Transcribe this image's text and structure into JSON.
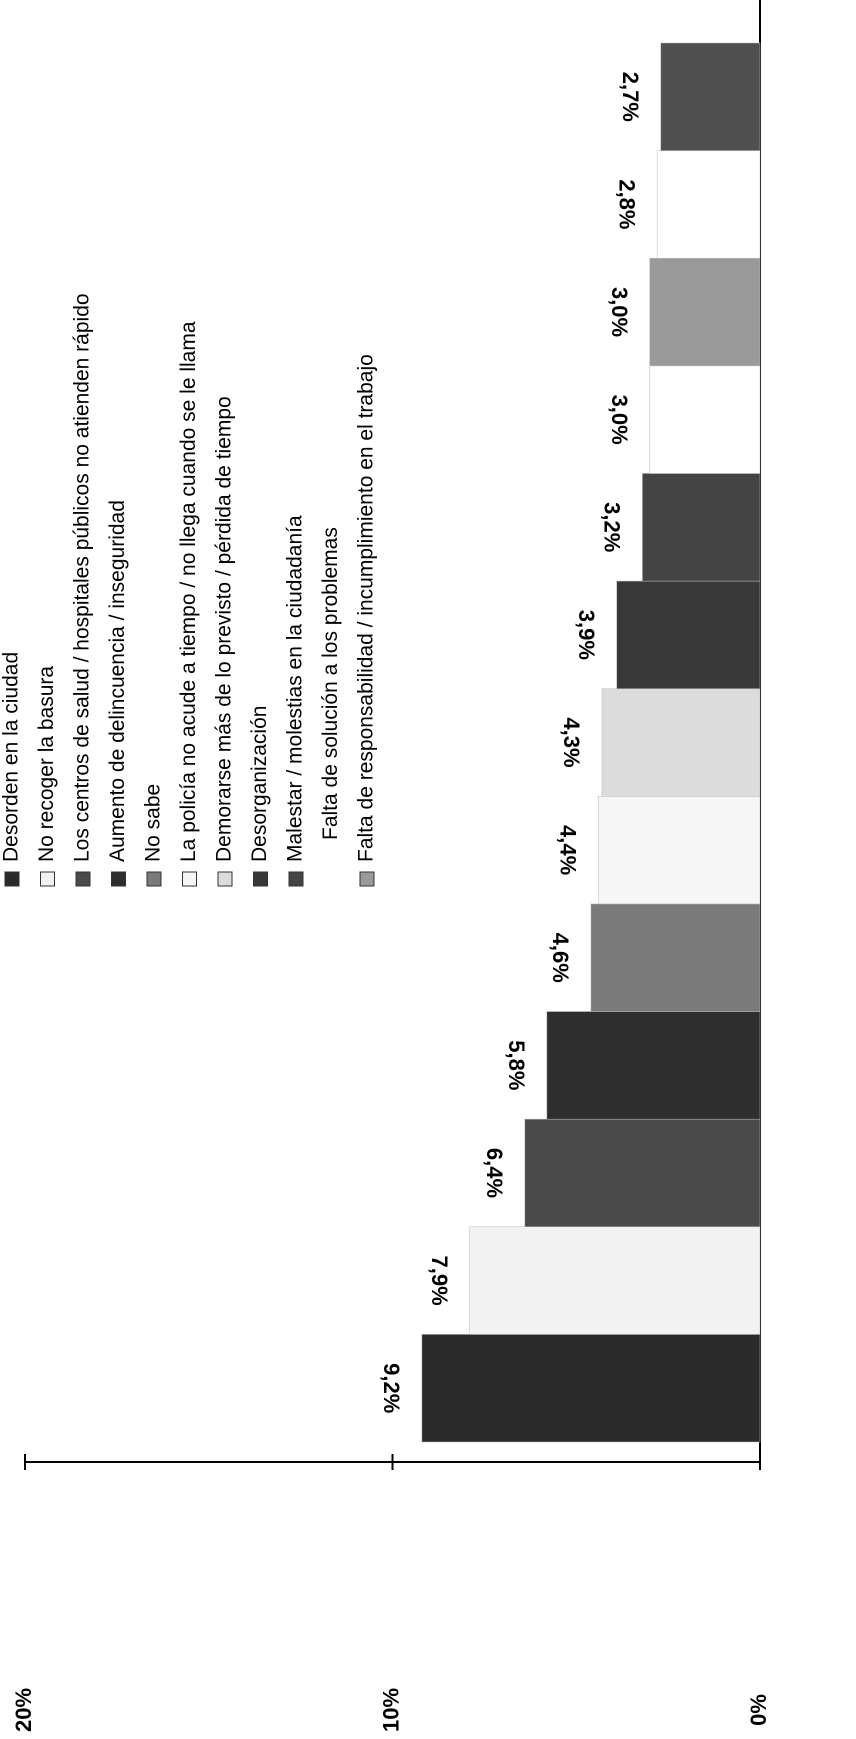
{
  "chart_data": {
    "type": "bar",
    "categories": [
      "Desorden en la ciudad",
      "No recoger la basura",
      "Los centros de salud / hospitales públicos no atienden rápido",
      "Aumento de delincuencia / inseguridad",
      "No sabe",
      "La policía no acude a tiempo / no llega cuando se le llama",
      "Demorarse más de lo previsto / pérdida de tiempo",
      "Desorganización",
      "Malestar / molestias en la ciudadanía",
      "Falta de solución a los problemas",
      "Falta de responsabilidad / incumplimiento en el trabajo",
      null,
      null
    ],
    "values": [
      9.2,
      7.9,
      6.4,
      5.8,
      4.6,
      4.4,
      4.3,
      3.9,
      3.2,
      3.0,
      3.0,
      2.8,
      2.7
    ],
    "value_labels": [
      "9,2%",
      "7,9%",
      "6,4%",
      "5,8%",
      "4,6%",
      "4,4%",
      "4,3%",
      "3,9%",
      "3,2%",
      "3,0%",
      "3,0%",
      "2,8%",
      "2,7%"
    ],
    "colors": [
      "#2a2a2a",
      "#f2f2f2",
      "#4a4a4a",
      "#2e2e2e",
      "#7a7a7a",
      "#f6f6f6",
      "#dcdcdc",
      "#383838",
      "#444444",
      "#ffffff",
      "#9a9a9a",
      "#ffffff",
      "#505050"
    ],
    "ylim": [
      0,
      20
    ],
    "yticks": [
      {
        "value": 0,
        "label": "0%"
      },
      {
        "value": 10,
        "label": "10%"
      },
      {
        "value": 20,
        "label": "20%"
      }
    ]
  }
}
